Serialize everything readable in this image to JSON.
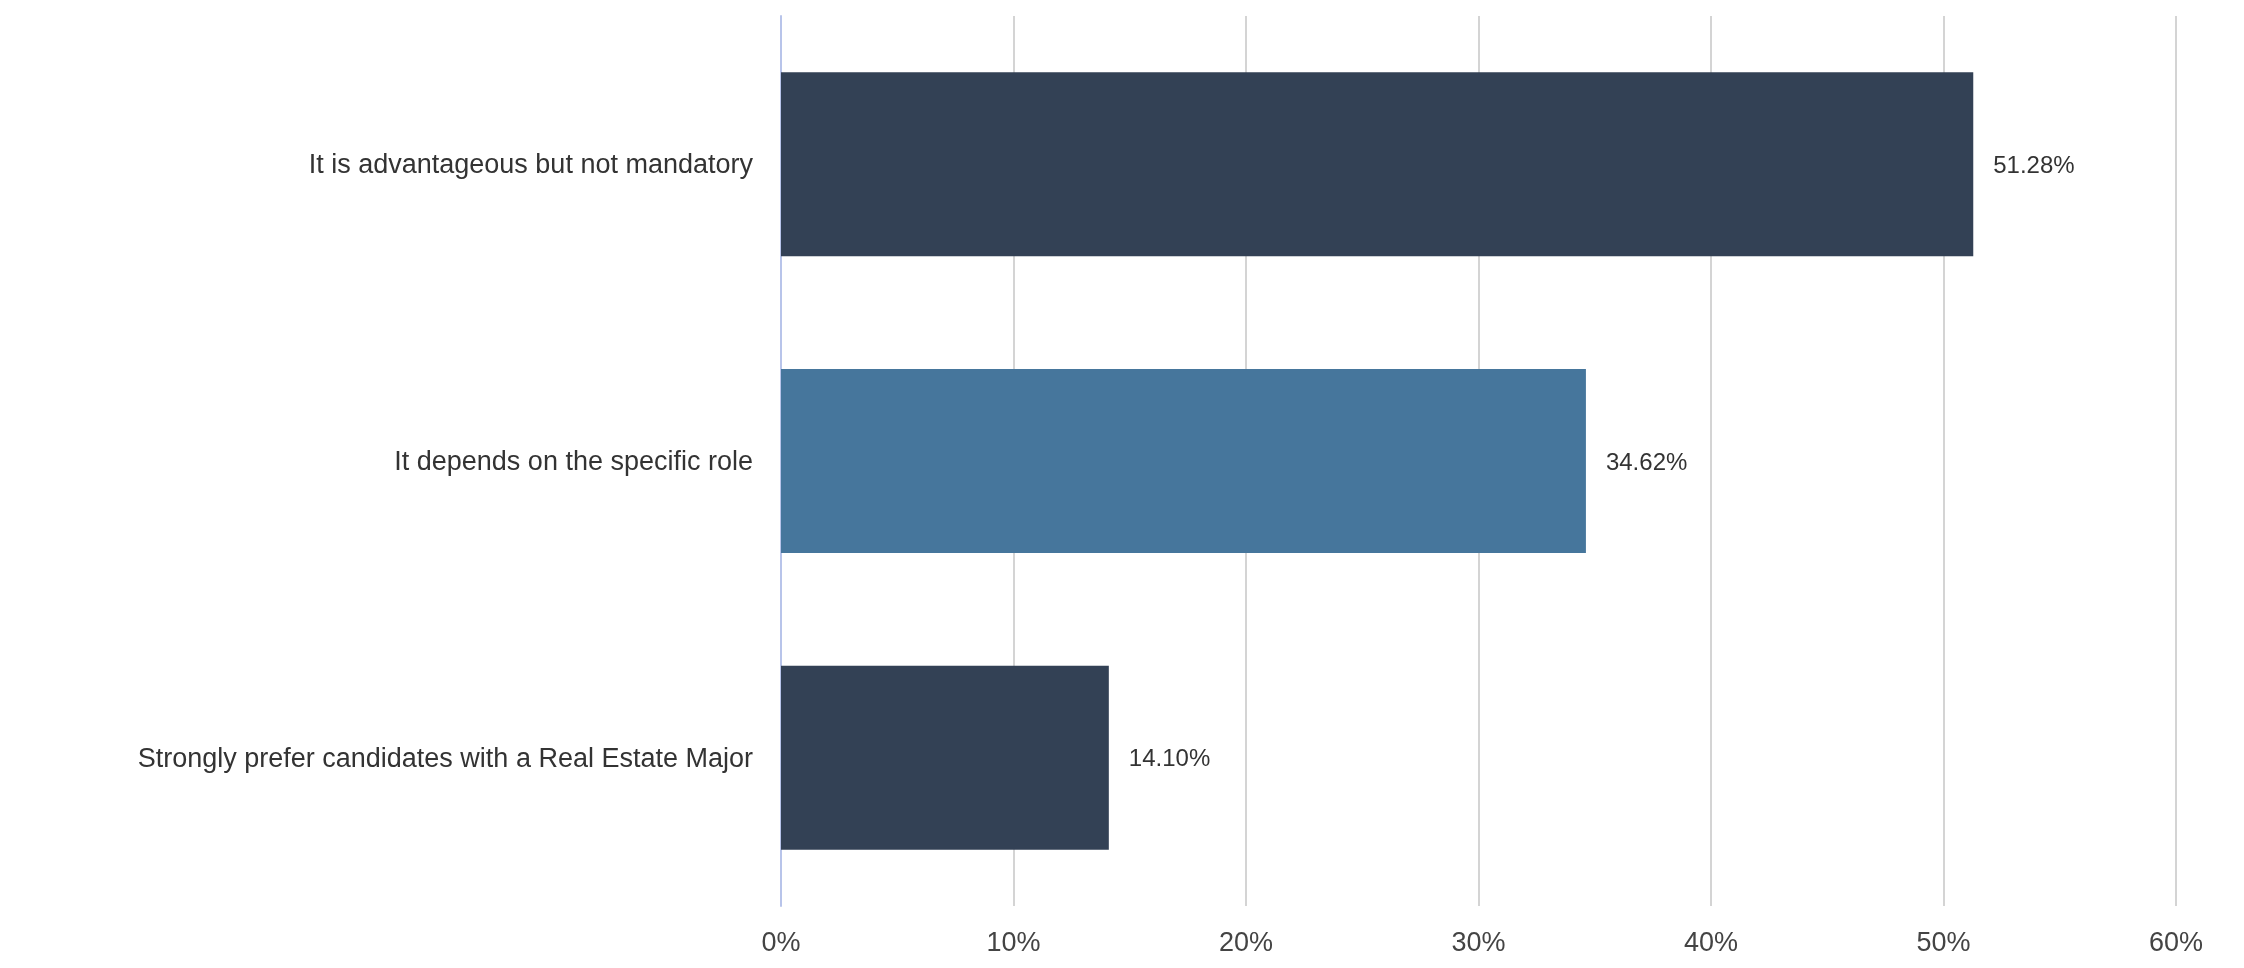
{
  "chart_data": {
    "type": "bar",
    "orientation": "horizontal",
    "categories": [
      "It is advantageous but not mandatory",
      "It depends on the specific role",
      "Strongly prefer candidates with a Real Estate Major"
    ],
    "values": [
      51.28,
      34.62,
      14.1
    ],
    "colors": [
      "#334155",
      "#46769c",
      "#334155"
    ],
    "value_labels": [
      "51.28%",
      "34.62%",
      "14.10%"
    ],
    "xlim": [
      0,
      60
    ],
    "xticks": [
      {
        "value": 0,
        "label": "0%"
      },
      {
        "value": 10,
        "label": "10%"
      },
      {
        "value": 20,
        "label": "20%"
      },
      {
        "value": 30,
        "label": "30%"
      },
      {
        "value": 40,
        "label": "40%"
      },
      {
        "value": 50,
        "label": "50%"
      },
      {
        "value": 60,
        "label": "60%"
      }
    ],
    "grid": "x"
  }
}
